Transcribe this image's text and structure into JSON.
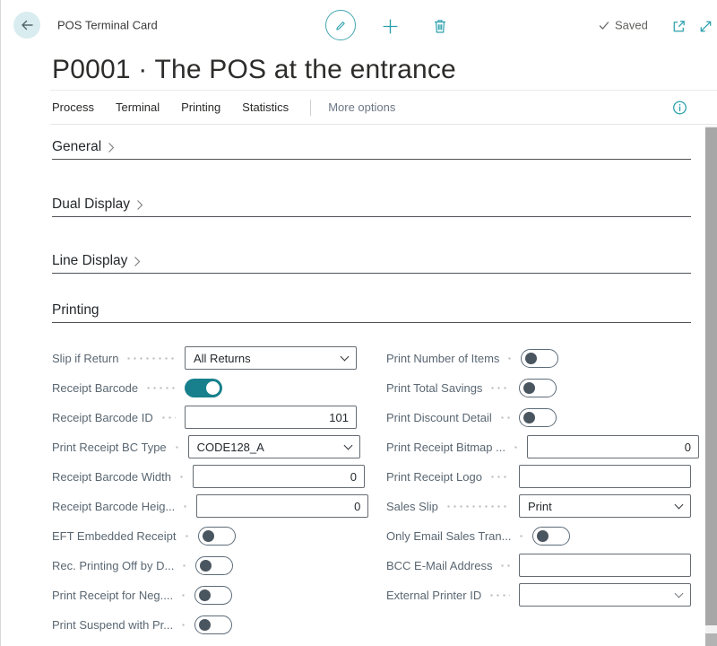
{
  "topbar": {
    "page_type": "POS Terminal Card",
    "saved_label": "Saved"
  },
  "title": "P0001 · The POS at the entrance",
  "actionbar": {
    "items": [
      "Process",
      "Terminal",
      "Printing",
      "Statistics"
    ],
    "more_label": "More options"
  },
  "sections": [
    {
      "label": "General",
      "collapsed": true
    },
    {
      "label": "Dual Display",
      "collapsed": true
    },
    {
      "label": "Line Display",
      "collapsed": true
    },
    {
      "label": "Printing",
      "collapsed": false
    }
  ],
  "form": {
    "left": [
      {
        "label": "Slip if Return",
        "control": "select",
        "value": "All Returns"
      },
      {
        "label": "Receipt Barcode",
        "control": "toggle",
        "value": "on"
      },
      {
        "label": "Receipt Barcode ID",
        "control": "input",
        "value": "101"
      },
      {
        "label": "Print Receipt BC Type",
        "control": "select",
        "value": "CODE128_A"
      },
      {
        "label": "Receipt Barcode Width",
        "control": "input",
        "value": "0"
      },
      {
        "label": "Receipt Barcode Heig...",
        "control": "input",
        "value": "0"
      },
      {
        "label": "EFT Embedded Receipt",
        "control": "toggle",
        "value": "off"
      },
      {
        "label": "Rec. Printing Off by D...",
        "control": "toggle",
        "value": "off"
      },
      {
        "label": "Print Receipt for Neg....",
        "control": "toggle",
        "value": "off"
      },
      {
        "label": "Print Suspend with Pr...",
        "control": "toggle",
        "value": "off"
      }
    ],
    "right": [
      {
        "label": "Print Number of Items",
        "control": "toggle",
        "value": "off"
      },
      {
        "label": "Print Total Savings",
        "control": "toggle",
        "value": "off"
      },
      {
        "label": "Print Discount Detail",
        "control": "toggle",
        "value": "off"
      },
      {
        "label": "Print Receipt Bitmap ...",
        "control": "input",
        "value": "0"
      },
      {
        "label": "Print Receipt Logo",
        "control": "input",
        "value": ""
      },
      {
        "label": "Sales Slip",
        "control": "select",
        "value": "Print"
      },
      {
        "label": "Only Email Sales Tran...",
        "control": "toggle",
        "value": "off"
      },
      {
        "label": "BCC E-Mail Address",
        "control": "input",
        "value": ""
      },
      {
        "label": "External Printer ID",
        "control": "combo",
        "value": ""
      }
    ]
  },
  "icons": {
    "back": "arrow-left-icon",
    "edit": "pencil-icon",
    "new": "plus-icon",
    "delete": "trash-icon",
    "saved": "checkmark-icon",
    "popout": "open-in-new-window-icon",
    "resize": "resize-diagonal-icon",
    "info": "info-icon",
    "collapsed_section": "chevron-right-icon",
    "dropdown": "chevron-down-icon"
  },
  "colors": {
    "accent_teal": "#2ba0ac",
    "toggle_on": "#17808c",
    "back_circle_bg": "#d9ecef",
    "section_rule": "#4e5256",
    "label_text": "#5a6772",
    "scrollbar_thumb": "#a7a7a7"
  }
}
